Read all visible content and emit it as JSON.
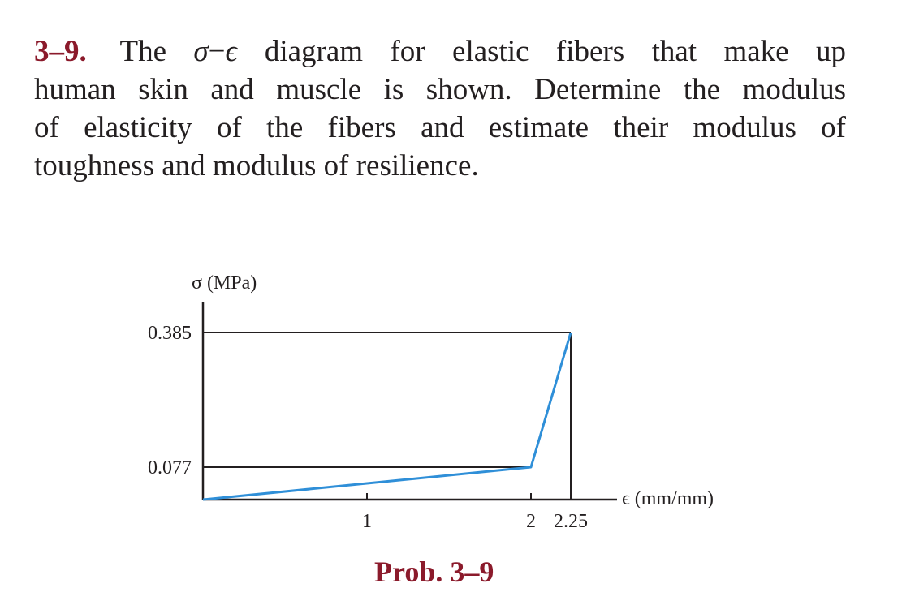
{
  "problem": {
    "number": "3–9.",
    "line1_pre": "The",
    "sigma": "σ",
    "dash": "−",
    "epsilon": "ϵ",
    "line1_post": "diagram for elastic fibers that make up",
    "line2": "human skin and muscle is shown. Determine the modulus",
    "line3": "of elasticity of the fibers and estimate their modulus of",
    "line4": "toughness and modulus of resilience."
  },
  "caption": "Prob. 3–9",
  "chart_data": {
    "type": "line",
    "title": "",
    "ylabel": "σ (MPa)",
    "xlabel": "ϵ (mm/mm)",
    "y_ticks": [
      "0.385",
      "0.077"
    ],
    "x_ticks": [
      "1",
      "2",
      "2.25"
    ],
    "xlim": [
      0,
      2.25
    ],
    "ylim": [
      0,
      0.385
    ],
    "series": [
      {
        "x": [
          0,
          2,
          2.25
        ],
        "y": [
          0,
          0.077,
          0.385
        ]
      }
    ],
    "line_color": "#2f8fd8",
    "axis_color": "#231f20"
  }
}
